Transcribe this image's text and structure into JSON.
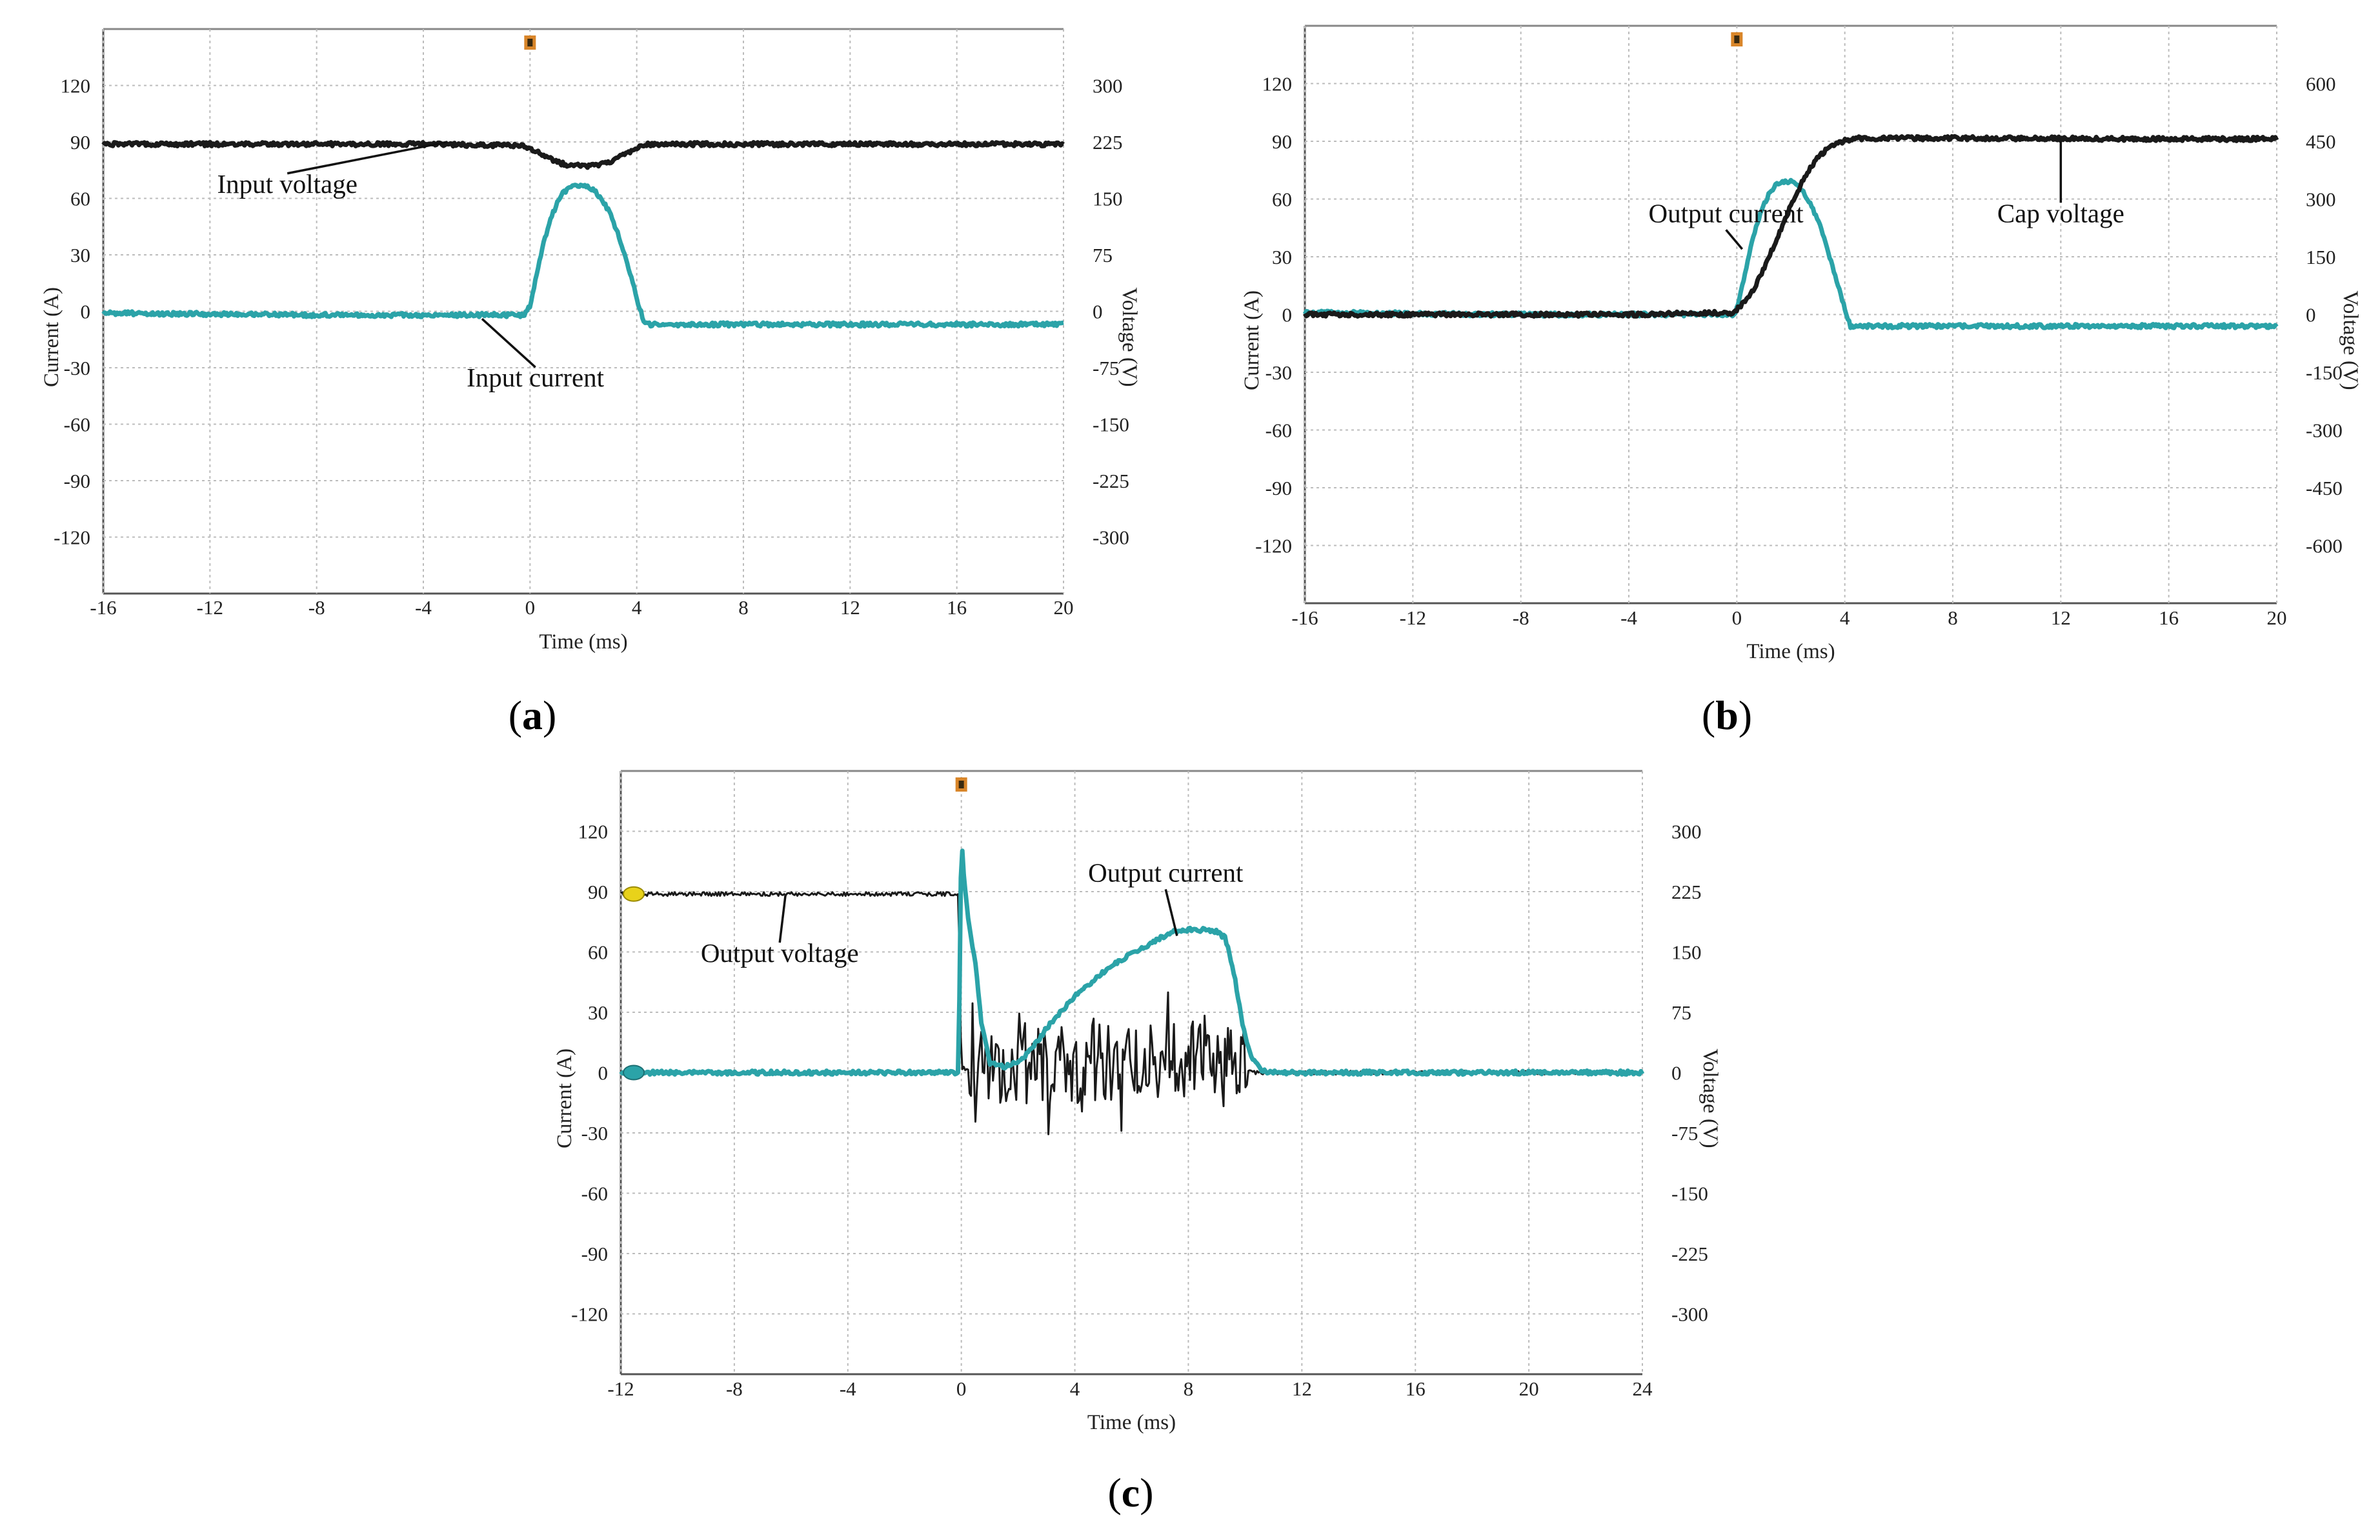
{
  "chart_data": [
    {
      "type": "line",
      "panel": "(a)",
      "panel_letter": "a",
      "xlabel": "Time (ms)",
      "ylabel_left": "Current (A)",
      "ylabel_right": "Voltage (V)",
      "xlim": [
        -16,
        20
      ],
      "ylim_left": [
        -150,
        150
      ],
      "ylim_right": [
        -375,
        375
      ],
      "x_ticks": [
        -16,
        -12,
        -8,
        -4,
        0,
        4,
        8,
        12,
        16,
        20
      ],
      "y_left_ticks": [
        120,
        90,
        60,
        30,
        0,
        -30,
        -60,
        -90,
        -120
      ],
      "y_right_ticks": [
        300,
        225,
        150,
        75,
        0,
        -75,
        -150,
        -225,
        -300
      ],
      "grid": true,
      "series": [
        {
          "name": "Input voltage",
          "axis": "right",
          "color": "#1a1a1a",
          "x": [
            -16,
            -4,
            -0.2,
            0.5,
            1,
            1.5,
            2,
            2.5,
            3,
            3.5,
            4,
            4.3,
            8,
            12,
            16,
            20
          ],
          "y": [
            222,
            222,
            220,
            207,
            198,
            194,
            193,
            194,
            199,
            207,
            216,
            222,
            222,
            222,
            222,
            222
          ]
        },
        {
          "name": "Input current",
          "axis": "left",
          "color": "#2ba3a8",
          "x": [
            -16,
            -8,
            -4,
            -0.2,
            0,
            0.25,
            0.5,
            0.75,
            1,
            1.25,
            1.5,
            1.75,
            2,
            2.25,
            2.5,
            2.75,
            3,
            3.25,
            3.5,
            3.75,
            4,
            4.3,
            8,
            12,
            16,
            20
          ],
          "y": [
            -1,
            -2,
            -2,
            -2,
            3,
            20,
            36,
            48,
            57,
            63,
            66,
            67,
            67,
            66,
            63,
            58,
            52,
            43,
            32,
            20,
            7,
            -7,
            -7,
            -7,
            -7,
            -7
          ]
        }
      ],
      "annotations": [
        {
          "text": "Input voltage",
          "x": -9.1,
          "y_left": 63,
          "point_x": -3.1,
          "point_y_left": 90
        },
        {
          "text": "Input current",
          "x": 0.2,
          "y_left": -40,
          "point_x": -1.8,
          "point_y_left": -4
        }
      ],
      "trigger_marker_x": 0
    },
    {
      "type": "line",
      "panel": "(b)",
      "panel_letter": "b",
      "xlabel": "Time (ms)",
      "ylabel_left": "Current (A)",
      "ylabel_right": "Voltage (V)",
      "xlim": [
        -16,
        20
      ],
      "ylim_left": [
        -150,
        150
      ],
      "ylim_right": [
        -750,
        750
      ],
      "x_ticks": [
        -16,
        -12,
        -8,
        -4,
        0,
        4,
        8,
        12,
        16,
        20
      ],
      "y_left_ticks": [
        120,
        90,
        60,
        30,
        0,
        -30,
        -60,
        -90,
        -120
      ],
      "y_right_ticks": [
        600,
        450,
        300,
        150,
        0,
        -150,
        -300,
        -450,
        -600
      ],
      "grid": true,
      "series": [
        {
          "name": "Output current",
          "axis": "left",
          "color": "#2ba3a8",
          "x": [
            -16,
            -8,
            -4,
            -0.1,
            0,
            0.25,
            0.5,
            0.75,
            1,
            1.25,
            1.5,
            1.75,
            2,
            2.25,
            2.5,
            2.75,
            3,
            3.25,
            3.5,
            3.75,
            4,
            4.2,
            8,
            12,
            16,
            20
          ],
          "y": [
            1,
            0,
            0,
            0,
            3,
            18,
            34,
            47,
            57,
            64,
            68,
            69,
            69,
            67,
            63,
            57,
            49,
            39,
            27,
            15,
            3,
            -6,
            -6,
            -6,
            -6,
            -6
          ]
        },
        {
          "name": "Cap voltage",
          "axis": "right",
          "color": "#1a1a1a",
          "x": [
            -16,
            -8,
            -4,
            -0.2,
            0,
            0.5,
            1,
            1.5,
            2,
            2.5,
            3,
            3.5,
            4,
            4.5,
            8,
            12,
            16,
            20
          ],
          "y": [
            0,
            0,
            0,
            5,
            12,
            50,
            118,
            200,
            282,
            356,
            408,
            440,
            452,
            458,
            458,
            457,
            456,
            456
          ]
        }
      ],
      "annotations": [
        {
          "text": "Output current",
          "x": -0.4,
          "y_left": 48,
          "point_x": 0.2,
          "point_y_left": 34
        },
        {
          "text": "Cap voltage",
          "x": 12,
          "y_left": 48,
          "point_x": 12,
          "point_y_left": 90
        }
      ],
      "trigger_marker_x": 0
    },
    {
      "type": "line",
      "panel": "(c)",
      "panel_letter": "c",
      "xlabel": "Time (ms)",
      "ylabel_left": "Current (A)",
      "ylabel_right": "Voltage (V)",
      "xlim": [
        -12,
        24
      ],
      "ylim_left": [
        -150,
        150
      ],
      "ylim_right": [
        -375,
        375
      ],
      "x_ticks": [
        -12,
        -8,
        -4,
        0,
        4,
        8,
        12,
        16,
        20,
        24
      ],
      "y_left_ticks": [
        120,
        90,
        60,
        30,
        0,
        -30,
        -60,
        -90,
        -120
      ],
      "y_right_ticks": [
        300,
        225,
        150,
        75,
        0,
        -75,
        -150,
        -225,
        -300
      ],
      "grid": true,
      "series": [
        {
          "name": "Output voltage",
          "axis": "right",
          "color": "#1a1a1a",
          "x": [
            -12,
            -8,
            -4,
            -3,
            -2,
            -0.1,
            0,
            0.5,
            1,
            2,
            3,
            4,
            5,
            6,
            7,
            8,
            9,
            9.8,
            10.2,
            12,
            16,
            17.5,
            20,
            24
          ],
          "y": [
            222,
            222,
            222,
            222,
            222,
            222,
            5,
            5,
            8,
            6,
            8,
            10,
            12,
            14,
            15,
            16,
            18,
            20,
            0,
            0,
            0,
            0,
            0,
            0
          ]
        },
        {
          "name": "Output current",
          "axis": "left",
          "color": "#2ba3a8",
          "x": [
            -12,
            -8,
            -4,
            -0.1,
            0,
            0.1,
            0.3,
            0.5,
            0.7,
            1,
            1.5,
            2,
            2.5,
            3,
            3.5,
            4,
            4.5,
            5,
            5.5,
            6,
            6.5,
            7,
            7.5,
            8,
            8.5,
            9,
            9.3,
            9.6,
            9.9,
            10.2,
            10.6,
            11,
            12,
            16,
            20,
            24
          ],
          "y": [
            0,
            0,
            0,
            0,
            118,
            95,
            70,
            55,
            25,
            5,
            3,
            5,
            12,
            22,
            30,
            38,
            44,
            50,
            55,
            59,
            63,
            67,
            70,
            71,
            71,
            70,
            67,
            50,
            25,
            8,
            1,
            0,
            0,
            0,
            0,
            0
          ]
        }
      ],
      "annotations": [
        {
          "text": "Output voltage",
          "x": -6.4,
          "y_left": 55,
          "point_x": -6.2,
          "point_y_left": 88
        },
        {
          "text": "Output current",
          "x": 7.2,
          "y_left": 95,
          "point_x": 7.6,
          "point_y_left": 68
        }
      ],
      "trigger_marker_x": 0
    }
  ],
  "colors": {
    "grid": "#bcbcbc",
    "frame": "#555555",
    "trigger_marker": "#d9862a",
    "channel_marker_a": "#e8d21a",
    "channel_marker_b": "#2ba3a8"
  }
}
